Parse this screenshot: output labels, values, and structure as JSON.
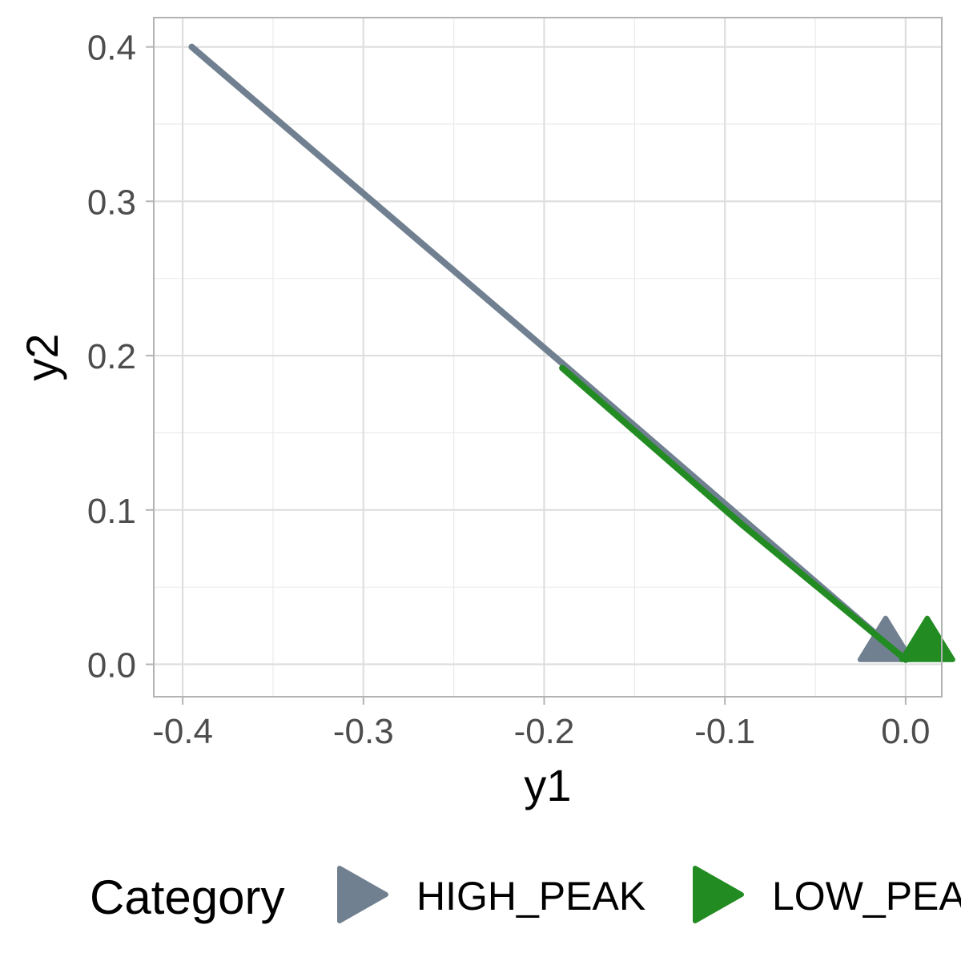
{
  "chart_data": {
    "type": "line",
    "xlabel": "y1",
    "ylabel": "y2",
    "xlim": [
      -0.416,
      0.02
    ],
    "ylim": [
      -0.021,
      0.419
    ],
    "x_ticks": [
      -0.4,
      -0.3,
      -0.2,
      -0.1,
      0.0
    ],
    "x_tick_labels": [
      "-0.4",
      "-0.3",
      "-0.2",
      "-0.1",
      "0.0"
    ],
    "y_ticks": [
      0.0,
      0.1,
      0.2,
      0.3,
      0.4
    ],
    "y_tick_labels": [
      "0.0",
      "0.1",
      "0.2",
      "0.3",
      "0.4"
    ],
    "x_minor_ticks": [
      -0.35,
      -0.25,
      -0.15,
      -0.05
    ],
    "y_minor_ticks": [
      0.05,
      0.15,
      0.25,
      0.35
    ],
    "grid": true,
    "legend": {
      "title": "Category",
      "position": "bottom"
    },
    "series": [
      {
        "name": "HIGH_PEAK",
        "color": "#708090",
        "marker": "triangle-arrow",
        "x": [
          -0.395,
          -0.19,
          0.0
        ],
        "y": [
          0.4,
          0.195,
          0.003
        ]
      },
      {
        "name": "LOW_PEAK",
        "color": "#228b22",
        "marker": "triangle-arrow",
        "x": [
          -0.19,
          -0.09,
          0.0
        ],
        "y": [
          0.192,
          0.09,
          0.003
        ]
      }
    ]
  }
}
